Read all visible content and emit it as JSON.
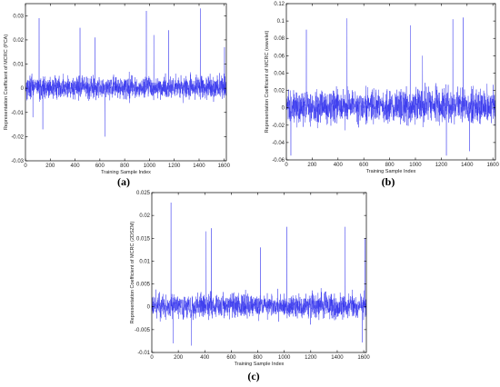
{
  "chart_data": [
    {
      "type": "line",
      "panel": "(a)",
      "xlabel": "Training Sample Index",
      "ylabel": "Representation Coefficient of MCRC (PCA)",
      "xlim": [
        0,
        1620
      ],
      "ylim": [
        -0.03,
        0.035
      ],
      "xticks": [
        0,
        200,
        400,
        600,
        800,
        1000,
        1200,
        1400,
        1600
      ],
      "yticks": [
        -0.03,
        -0.02,
        -0.01,
        0,
        0.01,
        0.02,
        0.03
      ],
      "ytick_labels": [
        "-0.03",
        "-0.02",
        "-0.01",
        "0",
        "0.01",
        "0.02",
        "0.03"
      ],
      "xtick_labels": [
        "0",
        "200",
        "400",
        "600",
        "800",
        "1000",
        "1200",
        "1400",
        "1600"
      ],
      "series": [
        {
          "color": "#3535ee",
          "noise": 0.0045,
          "spikes": [
            [
              110,
              0.029
            ],
            [
              440,
              0.025
            ],
            [
              560,
              0.021
            ],
            [
              975,
              0.032
            ],
            [
              1035,
              0.022
            ],
            [
              1155,
              0.024
            ],
            [
              1410,
              0.033
            ],
            [
              1605,
              0.017
            ],
            [
              140,
              -0.017
            ],
            [
              640,
              -0.02
            ],
            [
              60,
              -0.012
            ]
          ]
        }
      ]
    },
    {
      "type": "line",
      "panel": "(b)",
      "xlabel": "Training Sample Index",
      "ylabel": "Representation Coefficient of MCRC (wavelet)",
      "xlim": [
        0,
        1620
      ],
      "ylim": [
        -0.06,
        0.12
      ],
      "xticks": [
        0,
        200,
        400,
        600,
        800,
        1000,
        1200,
        1400,
        1600
      ],
      "yticks": [
        -0.06,
        -0.04,
        -0.02,
        0,
        0.02,
        0.04,
        0.06,
        0.08,
        0.1,
        0.12
      ],
      "ytick_labels": [
        "-0.06",
        "-0.04",
        "-0.02",
        "0",
        "0.02",
        "0.04",
        "0.06",
        "0.08",
        "0.1",
        "0.12"
      ],
      "xtick_labels": [
        "0",
        "200",
        "400",
        "600",
        "800",
        "1000",
        "1200",
        "1400",
        "1600"
      ],
      "series": [
        {
          "color": "#3535ee",
          "noise": 0.019,
          "spikes": [
            [
              155,
              0.09
            ],
            [
              470,
              0.103
            ],
            [
              960,
              0.095
            ],
            [
              1290,
              0.102
            ],
            [
              1370,
              0.104
            ],
            [
              1055,
              0.06
            ],
            [
              35,
              -0.055
            ],
            [
              1240,
              -0.055
            ],
            [
              1420,
              -0.05
            ]
          ]
        }
      ]
    },
    {
      "type": "line",
      "panel": "(c)",
      "xlabel": "Training Sample Index",
      "ylabel": "Representation Coefficient of MCRC (2DSZM)",
      "xlim": [
        0,
        1620
      ],
      "ylim": [
        -0.01,
        0.025
      ],
      "xticks": [
        0,
        200,
        400,
        600,
        800,
        1000,
        1200,
        1400,
        1600
      ],
      "yticks": [
        -0.01,
        -0.005,
        0,
        0.005,
        0.01,
        0.015,
        0.02,
        0.025
      ],
      "ytick_labels": [
        "-0.01",
        "-0.005",
        "0",
        "0.005",
        "0.01",
        "0.015",
        "0.02",
        "0.025"
      ],
      "xtick_labels": [
        "0",
        "200",
        "400",
        "600",
        "800",
        "1000",
        "1200",
        "1400",
        "1600"
      ],
      "series": [
        {
          "color": "#3535ee",
          "noise": 0.0026,
          "spikes": [
            [
              145,
              0.0228
            ],
            [
              410,
              0.0165
            ],
            [
              450,
              0.0172
            ],
            [
              1020,
              0.0175
            ],
            [
              1460,
              0.0175
            ],
            [
              1610,
              0.015
            ],
            [
              820,
              0.013
            ],
            [
              160,
              -0.008
            ],
            [
              300,
              -0.0085
            ],
            [
              1590,
              -0.0078
            ]
          ]
        }
      ]
    }
  ]
}
